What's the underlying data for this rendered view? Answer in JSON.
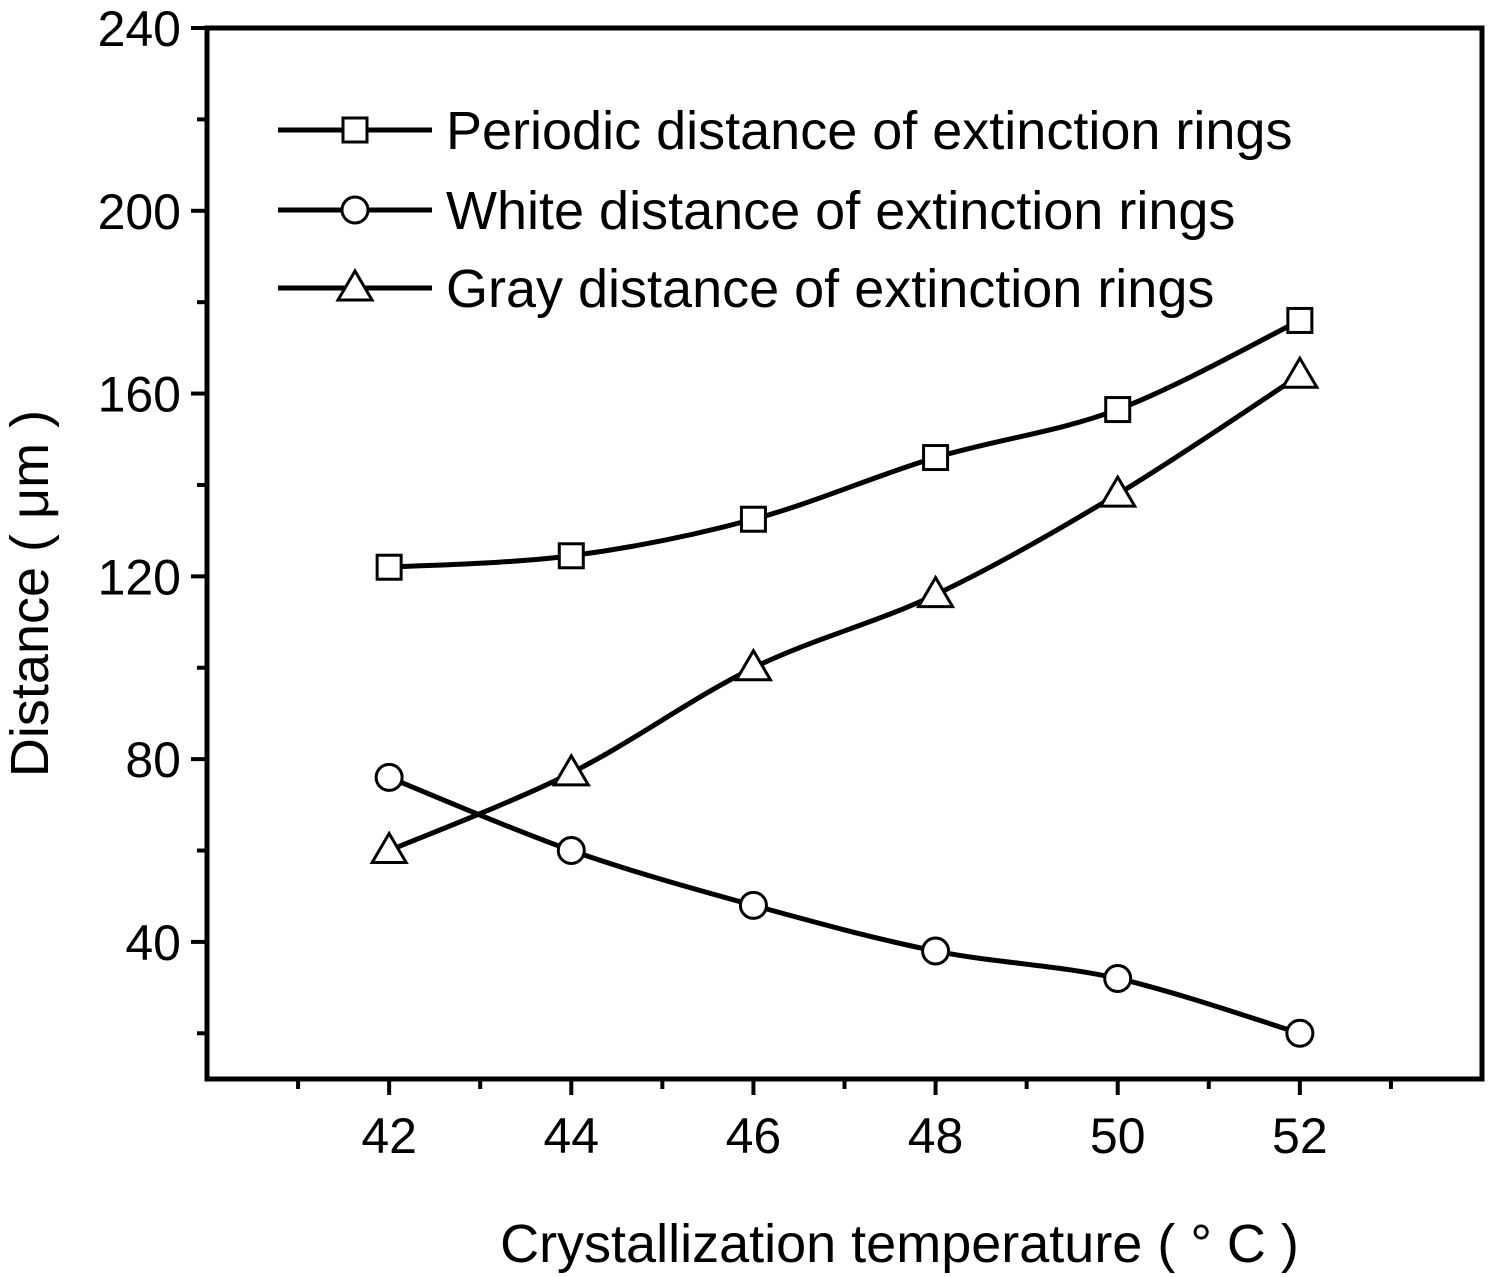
{
  "chart_data": {
    "type": "line",
    "title": "",
    "xlabel": "Crystallization temperature ( ° C )",
    "ylabel": "Distance ( μm )",
    "xlim": [
      40,
      54
    ],
    "ylim": [
      10,
      240
    ],
    "x_ticks": [
      "42",
      "44",
      "46",
      "48",
      "50",
      "52"
    ],
    "y_ticks": [
      "40",
      "80",
      "120",
      "160",
      "200",
      "240"
    ],
    "grid": false,
    "legend_position": "top-right",
    "x": [
      42,
      44,
      46,
      48,
      50,
      52
    ],
    "series": [
      {
        "name": "Periodic distance of extinction rings",
        "marker": "square",
        "values": [
          122,
          124.5,
          132.5,
          146,
          156.5,
          176
        ]
      },
      {
        "name": "White distance of extinction rings",
        "marker": "circle",
        "values": [
          76,
          60,
          48,
          38,
          32,
          20
        ]
      },
      {
        "name": "Gray distance of extinction rings",
        "marker": "triangle",
        "values": [
          60,
          77,
          100,
          116,
          138,
          164
        ]
      }
    ],
    "colors": {
      "line": "#000000",
      "marker_fill": "#ffffff",
      "background": "#ffffff"
    }
  }
}
